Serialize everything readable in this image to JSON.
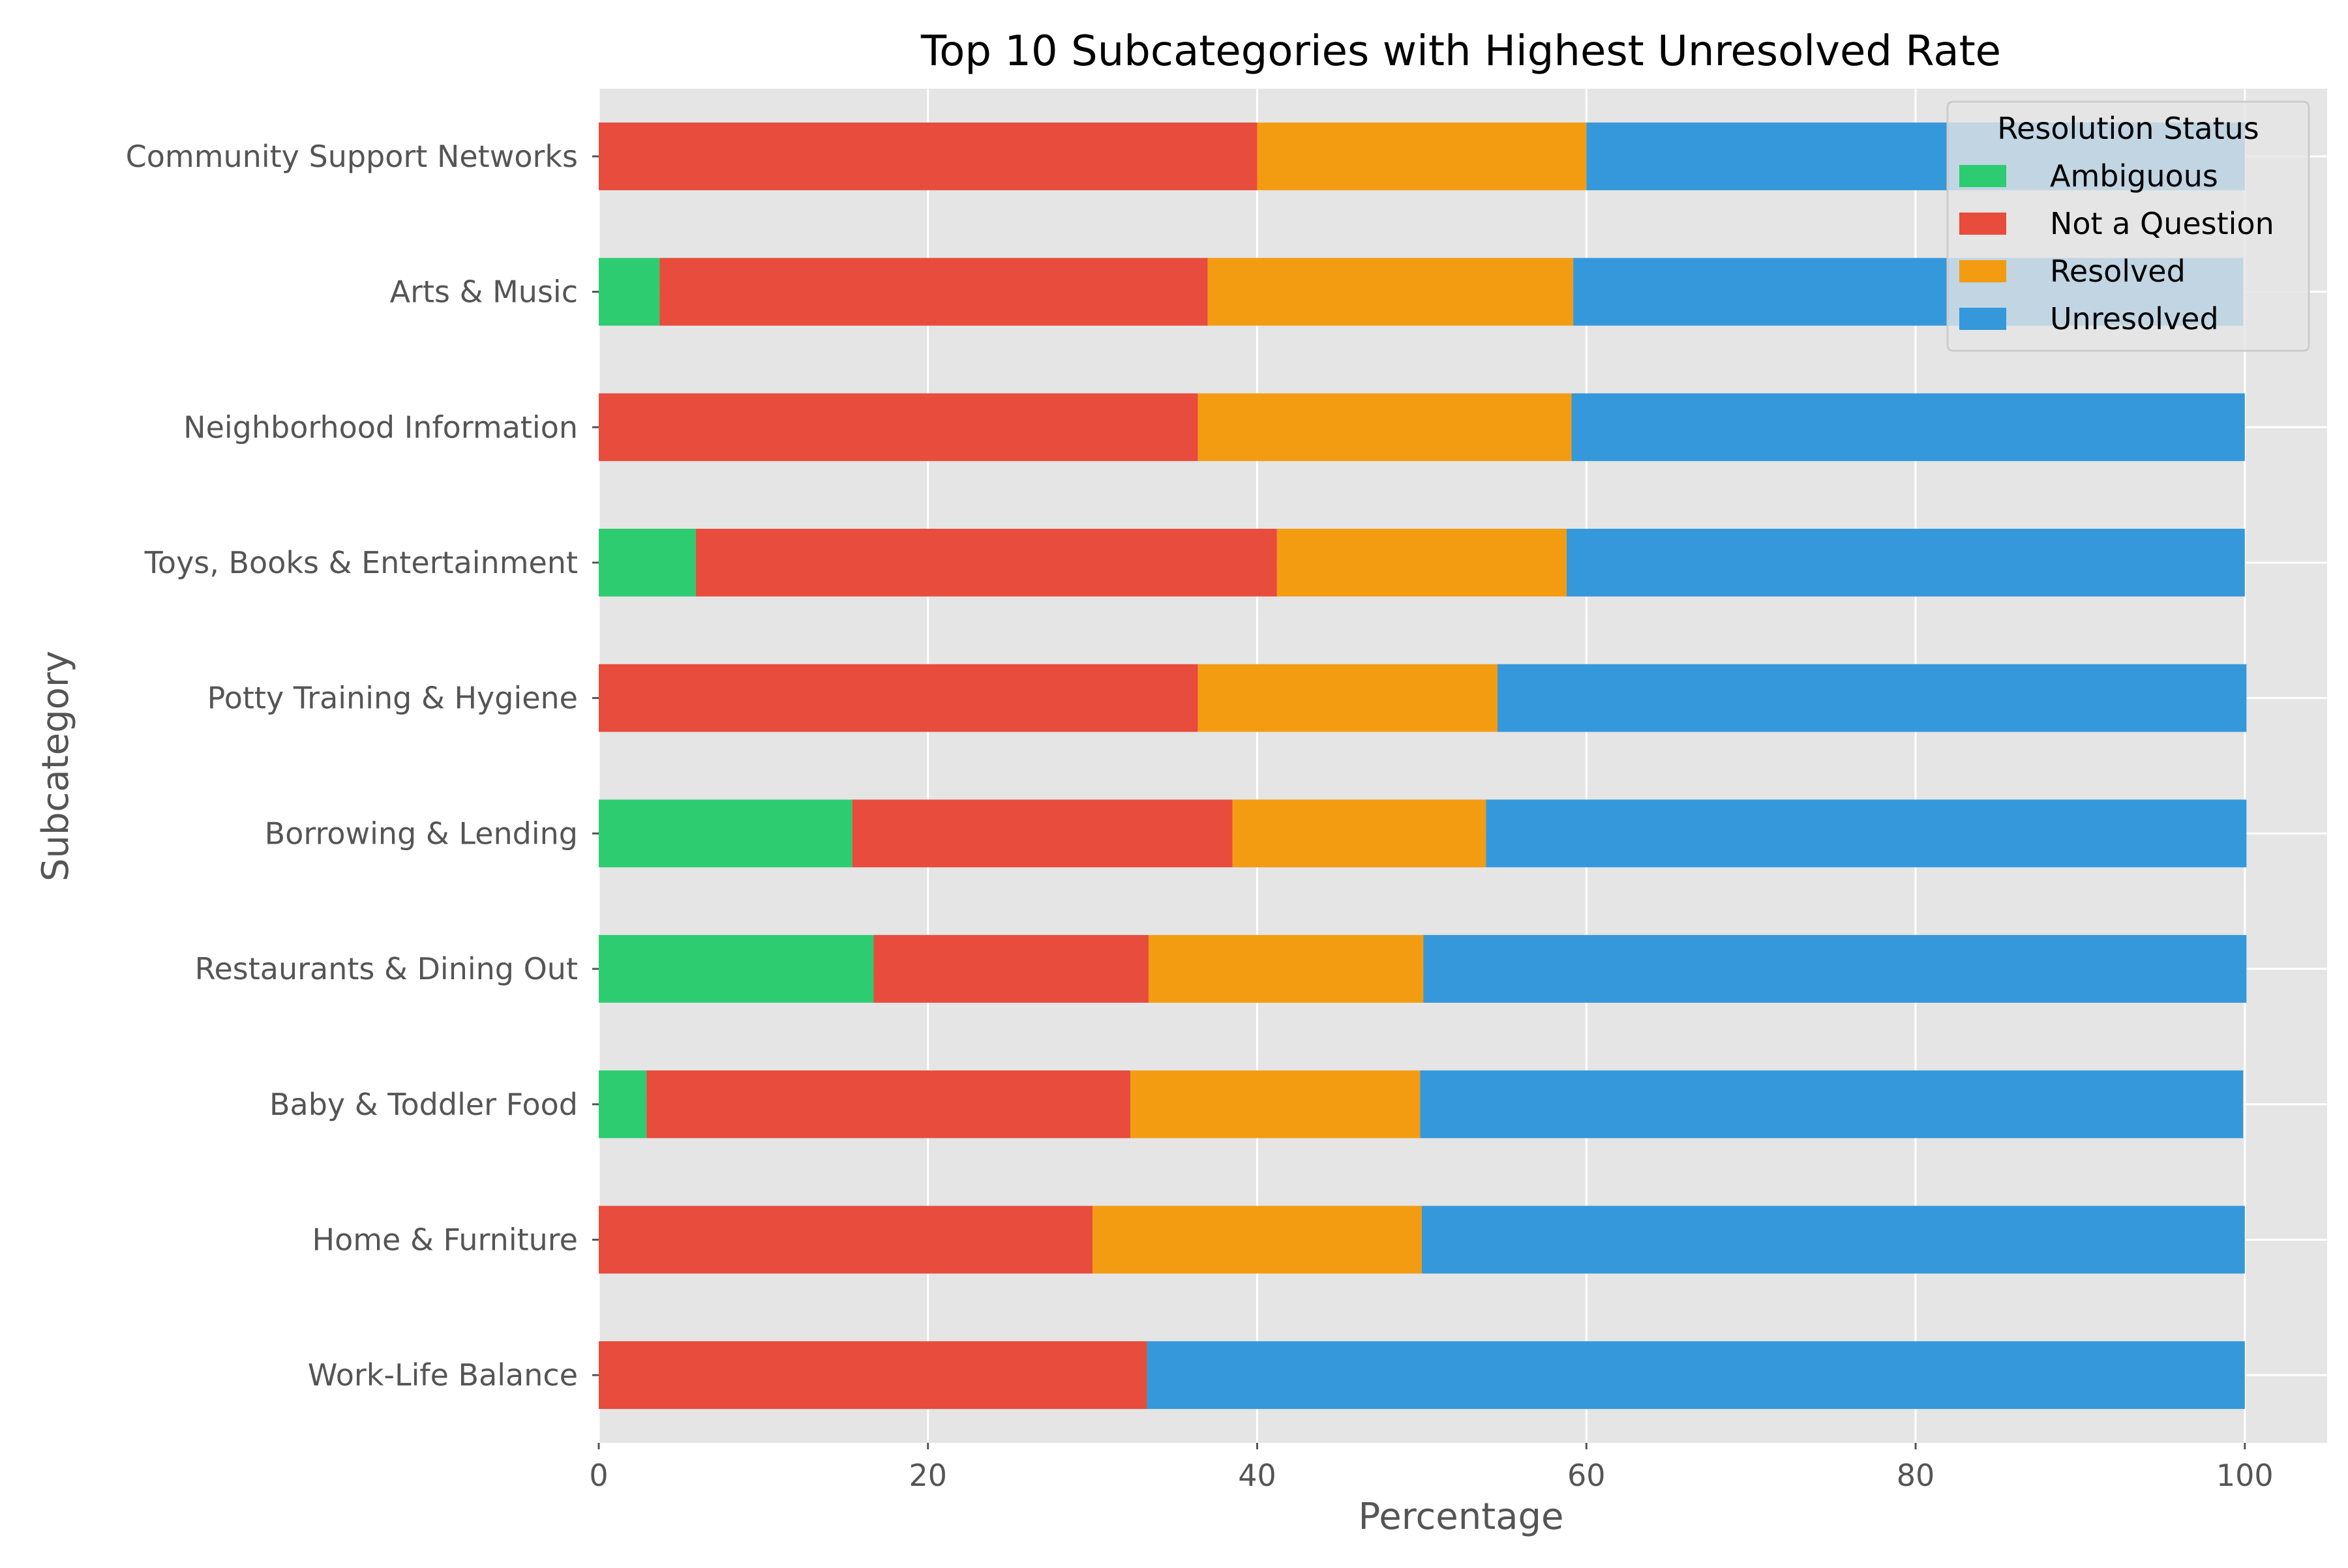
{
  "chart_data": {
    "type": "bar",
    "orientation": "horizontal",
    "stacked": true,
    "title": "Top 10 Subcategories with Highest Unresolved Rate",
    "xlabel": "Percentage",
    "ylabel": "Subcategory",
    "xlim": [
      0,
      105
    ],
    "xticks": [
      "0",
      "20",
      "40",
      "60",
      "80",
      "100"
    ],
    "grid": true,
    "legend_title": "Resolution Status",
    "legend_position": "top-right",
    "categories": [
      "Community Support Networks",
      "Arts & Music",
      "Neighborhood Information",
      "Toys, Books & Entertainment",
      "Potty Training & Hygiene",
      "Borrowing & Lending",
      "Restaurants & Dining Out",
      "Baby & Toddler Food",
      "Home & Furniture",
      "Work-Life Balance"
    ],
    "series": [
      {
        "name": "Ambiguous",
        "color": "#2ecc71",
        "values": [
          0,
          3.7,
          0,
          5.9,
          0,
          15.4,
          16.7,
          2.9,
          0,
          0
        ]
      },
      {
        "name": "Not a Question",
        "color": "#e74c3c",
        "values": [
          40.0,
          33.3,
          36.4,
          35.3,
          36.4,
          23.1,
          16.7,
          29.4,
          30.0,
          33.3
        ]
      },
      {
        "name": "Resolved",
        "color": "#f39c12",
        "values": [
          20.0,
          22.2,
          22.7,
          17.6,
          18.2,
          15.4,
          16.7,
          17.6,
          20.0,
          0
        ]
      },
      {
        "name": "Unresolved",
        "color": "#3498db",
        "values": [
          40.0,
          40.7,
          40.9,
          41.2,
          45.5,
          46.2,
          50.0,
          50.0,
          50.0,
          66.7
        ]
      }
    ]
  }
}
